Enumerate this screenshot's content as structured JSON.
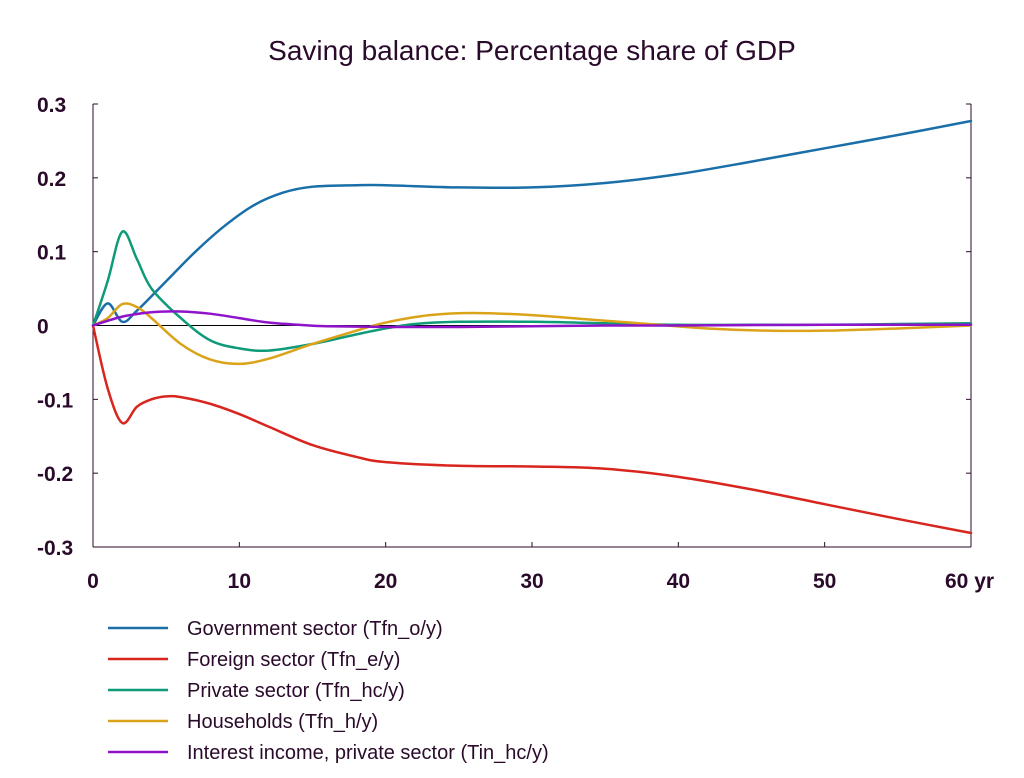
{
  "chart_data": {
    "type": "line",
    "title": "Saving balance: Percentage share of GDP",
    "xlabel": "",
    "ylabel": "",
    "xlim": [
      0,
      60
    ],
    "ylim": [
      -0.3,
      0.3
    ],
    "x_ticks": [
      0,
      10,
      20,
      30,
      40,
      50,
      60
    ],
    "x_tick_labels": [
      "0",
      "10",
      "20",
      "30",
      "40",
      "50",
      "60 yr"
    ],
    "y_ticks": [
      0.3,
      0.2,
      0.1,
      0,
      -0.1,
      -0.2,
      -0.3
    ],
    "y_tick_labels": [
      "0.3",
      "0.2",
      "0.1",
      "0",
      "-0.1",
      "-0.2",
      "-0.3"
    ],
    "grid": false,
    "zero_line": true,
    "legend_position": "bottom",
    "series": [
      {
        "name": "Government sector (Tfn_o/y)",
        "color": "#1a6fa8",
        "points": [
          [
            0,
            0
          ],
          [
            1,
            0.03
          ],
          [
            2,
            0.005
          ],
          [
            3,
            0.02
          ],
          [
            5,
            0.06
          ],
          [
            7,
            0.1
          ],
          [
            9,
            0.135
          ],
          [
            11,
            0.163
          ],
          [
            13,
            0.18
          ],
          [
            15,
            0.188
          ],
          [
            18,
            0.19
          ],
          [
            20,
            0.19
          ],
          [
            25,
            0.187
          ],
          [
            30,
            0.187
          ],
          [
            35,
            0.193
          ],
          [
            40,
            0.205
          ],
          [
            45,
            0.222
          ],
          [
            50,
            0.24
          ],
          [
            55,
            0.258
          ],
          [
            60,
            0.277
          ]
        ]
      },
      {
        "name": "Foreign sector (Tfn_e/y)",
        "color": "#d8261e",
        "points": [
          [
            0,
            0
          ],
          [
            1,
            -0.085
          ],
          [
            2,
            -0.132
          ],
          [
            3,
            -0.11
          ],
          [
            4,
            -0.1
          ],
          [
            5,
            -0.096
          ],
          [
            6,
            -0.097
          ],
          [
            8,
            -0.106
          ],
          [
            10,
            -0.12
          ],
          [
            12,
            -0.137
          ],
          [
            15,
            -0.162
          ],
          [
            18,
            -0.178
          ],
          [
            20,
            -0.185
          ],
          [
            25,
            -0.19
          ],
          [
            30,
            -0.191
          ],
          [
            35,
            -0.194
          ],
          [
            40,
            -0.205
          ],
          [
            45,
            -0.222
          ],
          [
            50,
            -0.242
          ],
          [
            55,
            -0.262
          ],
          [
            60,
            -0.281
          ]
        ]
      },
      {
        "name": "Private sector (Tfn_hc/y)",
        "color": "#0f9a78",
        "points": [
          [
            0,
            0
          ],
          [
            1,
            0.06
          ],
          [
            2,
            0.127
          ],
          [
            3,
            0.09
          ],
          [
            4,
            0.05
          ],
          [
            6,
            0.01
          ],
          [
            8,
            -0.02
          ],
          [
            10,
            -0.031
          ],
          [
            12,
            -0.034
          ],
          [
            15,
            -0.025
          ],
          [
            18,
            -0.012
          ],
          [
            20,
            -0.004
          ],
          [
            22,
            0.002
          ],
          [
            25,
            0.005
          ],
          [
            30,
            0.005
          ],
          [
            35,
            0.003
          ],
          [
            40,
            0.001
          ],
          [
            45,
            0.001
          ],
          [
            50,
            0.001
          ],
          [
            55,
            0.002
          ],
          [
            60,
            0.003
          ]
        ]
      },
      {
        "name": "Households (Tfn_h/y)",
        "color": "#dba319",
        "points": [
          [
            0,
            0
          ],
          [
            1,
            0.01
          ],
          [
            2,
            0.029
          ],
          [
            3,
            0.025
          ],
          [
            4,
            0.01
          ],
          [
            6,
            -0.025
          ],
          [
            8,
            -0.046
          ],
          [
            10,
            -0.052
          ],
          [
            12,
            -0.045
          ],
          [
            15,
            -0.025
          ],
          [
            18,
            -0.007
          ],
          [
            20,
            0.004
          ],
          [
            23,
            0.014
          ],
          [
            26,
            0.017
          ],
          [
            30,
            0.014
          ],
          [
            34,
            0.008
          ],
          [
            38,
            0.002
          ],
          [
            42,
            -0.004
          ],
          [
            46,
            -0.007
          ],
          [
            50,
            -0.007
          ],
          [
            55,
            -0.004
          ],
          [
            60,
            0.0
          ]
        ]
      },
      {
        "name": "Interest income, private sector (Tin_hc/y)",
        "color": "#8f14c9",
        "points": [
          [
            0,
            0
          ],
          [
            2,
            0.012
          ],
          [
            4,
            0.018
          ],
          [
            6,
            0.019
          ],
          [
            8,
            0.016
          ],
          [
            10,
            0.01
          ],
          [
            12,
            0.004
          ],
          [
            14,
            0.001
          ],
          [
            16,
            -0.001
          ],
          [
            20,
            -0.002
          ],
          [
            25,
            -0.002
          ],
          [
            30,
            -0.001
          ],
          [
            35,
            0.0
          ],
          [
            40,
            0.0
          ],
          [
            50,
            0.001
          ],
          [
            60,
            0.001
          ]
        ]
      }
    ]
  }
}
